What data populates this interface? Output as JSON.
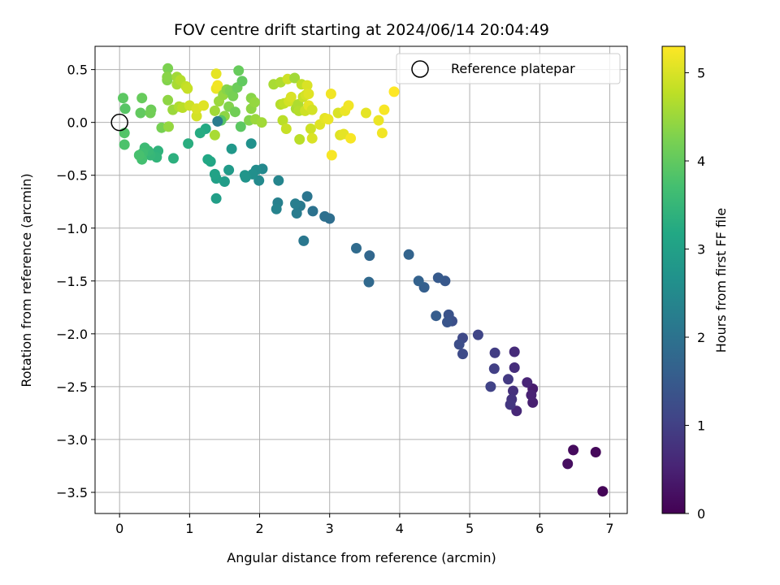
{
  "chart_data": {
    "type": "scatter",
    "title": "FOV centre drift starting at 2024/06/14 20:04:49",
    "xlabel": "Angular distance from reference (arcmin)",
    "ylabel": "Rotation from reference (arcmin)",
    "xlim": [
      -0.35,
      7.25
    ],
    "ylim": [
      -3.7,
      0.72
    ],
    "xticks": [
      0,
      1,
      2,
      3,
      4,
      5,
      6,
      7
    ],
    "xtick_labels": [
      "0",
      "1",
      "2",
      "3",
      "4",
      "5",
      "6",
      "7"
    ],
    "yticks": [
      0.5,
      0.0,
      -0.5,
      -1.0,
      -1.5,
      -2.0,
      -2.5,
      -3.0,
      -3.5
    ],
    "ytick_labels": [
      "0.5",
      "0.0",
      "−0.5",
      "−1.0",
      "−1.5",
      "−2.0",
      "−2.5",
      "−3.0",
      "−3.5"
    ],
    "grid": true,
    "legend": {
      "label": "Reference platepar",
      "position": "upper right",
      "marker": "open-circle"
    },
    "reference_point": {
      "x": 0,
      "y": 0
    },
    "colorbar": {
      "label": "Hours from first FF file",
      "colormap": "viridis",
      "range": [
        0,
        5.3
      ],
      "ticks": [
        0,
        1,
        2,
        3,
        4,
        5
      ],
      "tick_labels": [
        "0",
        "1",
        "2",
        "3",
        "4",
        "5"
      ]
    },
    "points": [
      [
        6.9,
        -3.49,
        0.05
      ],
      [
        6.8,
        -3.12,
        0.1
      ],
      [
        6.48,
        -3.1,
        0.15
      ],
      [
        6.4,
        -3.23,
        0.2
      ],
      [
        5.9,
        -2.52,
        0.4
      ],
      [
        5.9,
        -2.65,
        0.45
      ],
      [
        5.88,
        -2.58,
        0.5
      ],
      [
        5.82,
        -2.46,
        0.55
      ],
      [
        5.67,
        -2.73,
        0.6
      ],
      [
        5.64,
        -2.17,
        0.65
      ],
      [
        5.64,
        -2.32,
        0.7
      ],
      [
        5.62,
        -2.54,
        0.75
      ],
      [
        5.6,
        -2.62,
        0.8
      ],
      [
        5.58,
        -2.67,
        0.85
      ],
      [
        5.55,
        -2.43,
        0.9
      ],
      [
        5.36,
        -2.18,
        0.95
      ],
      [
        5.35,
        -2.33,
        1.0
      ],
      [
        5.3,
        -2.5,
        1.05
      ],
      [
        5.12,
        -2.01,
        1.1
      ],
      [
        4.9,
        -2.04,
        1.15
      ],
      [
        4.9,
        -2.19,
        1.2
      ],
      [
        4.85,
        -2.1,
        1.25
      ],
      [
        4.75,
        -1.88,
        1.3
      ],
      [
        4.7,
        -1.82,
        1.35
      ],
      [
        4.68,
        -1.89,
        1.4
      ],
      [
        4.65,
        -1.5,
        1.45
      ],
      [
        4.55,
        -1.47,
        1.5
      ],
      [
        4.52,
        -1.83,
        1.55
      ],
      [
        4.35,
        -1.56,
        1.6
      ],
      [
        4.27,
        -1.5,
        1.65
      ],
      [
        4.13,
        -1.25,
        1.7
      ],
      [
        3.57,
        -1.26,
        1.75
      ],
      [
        3.56,
        -1.51,
        1.8
      ],
      [
        3.38,
        -1.19,
        1.85
      ],
      [
        3.0,
        -0.91,
        1.9
      ],
      [
        2.93,
        -0.89,
        1.95
      ],
      [
        2.76,
        -0.84,
        2.0
      ],
      [
        2.68,
        -0.7,
        2.05
      ],
      [
        2.63,
        -1.12,
        2.1
      ],
      [
        2.58,
        -0.79,
        2.15
      ],
      [
        2.53,
        -0.86,
        2.2
      ],
      [
        2.51,
        -0.77,
        2.25
      ],
      [
        2.26,
        -0.76,
        2.3
      ],
      [
        2.24,
        -0.82,
        2.35
      ],
      [
        2.27,
        -0.55,
        2.4
      ],
      [
        2.04,
        -0.44,
        2.45
      ],
      [
        1.99,
        -0.55,
        2.5
      ],
      [
        1.95,
        -0.45,
        2.55
      ],
      [
        1.9,
        -0.49,
        2.6
      ],
      [
        1.88,
        -0.2,
        2.65
      ],
      [
        1.8,
        -0.52,
        2.7
      ],
      [
        1.79,
        -0.5,
        2.75
      ],
      [
        1.6,
        -0.25,
        2.8
      ],
      [
        1.56,
        -0.45,
        2.85
      ],
      [
        1.5,
        -0.56,
        2.9
      ],
      [
        1.38,
        -0.72,
        2.95
      ],
      [
        1.38,
        -0.53,
        3.0
      ],
      [
        1.36,
        -0.49,
        3.05
      ],
      [
        1.3,
        -0.37,
        3.1
      ],
      [
        1.26,
        -0.35,
        3.15
      ],
      [
        1.23,
        -0.06,
        3.2
      ],
      [
        1.15,
        -0.1,
        3.25
      ],
      [
        0.98,
        -0.2,
        3.3
      ],
      [
        0.77,
        -0.34,
        3.35
      ],
      [
        0.55,
        -0.27,
        3.4
      ],
      [
        0.53,
        -0.33,
        3.45
      ],
      [
        0.44,
        -0.31,
        3.5
      ],
      [
        0.41,
        -0.27,
        3.55
      ],
      [
        0.36,
        -0.24,
        3.6
      ],
      [
        0.33,
        -0.29,
        3.65
      ],
      [
        0.32,
        -0.35,
        3.7
      ],
      [
        0.28,
        -0.31,
        3.75
      ],
      [
        0.07,
        -0.21,
        3.8
      ],
      [
        0.07,
        -0.1,
        3.85
      ],
      [
        0.08,
        0.13,
        3.9
      ],
      [
        0.05,
        0.23,
        3.95
      ],
      [
        0.3,
        0.09,
        4.0
      ],
      [
        0.32,
        0.23,
        4.05
      ],
      [
        0.45,
        0.12,
        4.1
      ],
      [
        0.44,
        0.09,
        4.15
      ],
      [
        0.6,
        -0.05,
        4.2
      ],
      [
        0.69,
        0.51,
        4.25
      ],
      [
        0.68,
        0.4,
        4.3
      ],
      [
        0.68,
        0.43,
        4.35
      ],
      [
        0.69,
        0.21,
        4.4
      ],
      [
        0.7,
        -0.04,
        4.45
      ],
      [
        0.76,
        0.12,
        4.5
      ],
      [
        0.82,
        0.43,
        4.55
      ],
      [
        0.82,
        0.36,
        4.6
      ],
      [
        0.85,
        0.15,
        4.65
      ],
      [
        0.87,
        0.4,
        4.7
      ],
      [
        0.9,
        0.14,
        4.75
      ],
      [
        0.95,
        0.34,
        4.8
      ],
      [
        0.97,
        0.32,
        4.85
      ],
      [
        1.0,
        0.16,
        4.9
      ],
      [
        1.1,
        0.06,
        4.95
      ],
      [
        1.1,
        0.13,
        5.0
      ],
      [
        1.2,
        0.16,
        5.05
      ],
      [
        1.38,
        0.46,
        5.1
      ],
      [
        1.38,
        0.32,
        5.15
      ],
      [
        1.4,
        0.35,
        5.2
      ],
      [
        1.36,
        -0.12,
        4.6
      ],
      [
        1.36,
        0.11,
        4.55
      ],
      [
        1.42,
        0.2,
        4.5
      ],
      [
        1.48,
        0.26,
        4.45
      ],
      [
        1.5,
        0.06,
        4.4
      ],
      [
        1.53,
        0.31,
        4.35
      ],
      [
        1.56,
        0.15,
        4.3
      ],
      [
        1.58,
        0.3,
        4.25
      ],
      [
        1.62,
        0.25,
        4.2
      ],
      [
        1.65,
        0.1,
        4.15
      ],
      [
        1.68,
        0.33,
        4.1
      ],
      [
        1.7,
        0.49,
        4.05
      ],
      [
        1.75,
        0.39,
        4.0
      ],
      [
        1.73,
        -0.04,
        3.95
      ],
      [
        1.45,
        0.02,
        3.9
      ],
      [
        1.4,
        0.01,
        2.2
      ],
      [
        1.85,
        0.02,
        4.3
      ],
      [
        1.88,
        0.23,
        4.35
      ],
      [
        1.88,
        0.13,
        4.4
      ],
      [
        1.93,
        0.19,
        4.45
      ],
      [
        1.94,
        0.03,
        4.5
      ],
      [
        2.03,
        0.0,
        4.55
      ],
      [
        2.2,
        0.36,
        4.6
      ],
      [
        2.3,
        0.38,
        4.65
      ],
      [
        2.3,
        0.17,
        4.7
      ],
      [
        2.33,
        0.02,
        4.75
      ],
      [
        2.35,
        0.18,
        4.8
      ],
      [
        2.38,
        -0.06,
        4.85
      ],
      [
        2.4,
        0.41,
        4.9
      ],
      [
        2.42,
        0.2,
        4.95
      ],
      [
        2.45,
        0.24,
        5.0
      ],
      [
        2.5,
        0.42,
        4.55
      ],
      [
        2.52,
        0.13,
        4.6
      ],
      [
        2.55,
        0.17,
        4.65
      ],
      [
        2.56,
        0.11,
        4.7
      ],
      [
        2.57,
        -0.16,
        4.75
      ],
      [
        2.6,
        0.36,
        4.8
      ],
      [
        2.62,
        0.24,
        4.85
      ],
      [
        2.65,
        0.11,
        4.9
      ],
      [
        2.66,
        0.26,
        4.95
      ],
      [
        2.68,
        0.35,
        5.0
      ],
      [
        2.7,
        0.27,
        5.05
      ],
      [
        2.7,
        0.16,
        5.1
      ],
      [
        2.73,
        -0.06,
        4.9
      ],
      [
        2.75,
        0.12,
        4.95
      ],
      [
        2.75,
        -0.15,
        5.0
      ],
      [
        2.86,
        -0.02,
        5.05
      ],
      [
        2.93,
        0.04,
        5.1
      ],
      [
        2.98,
        0.03,
        5.15
      ],
      [
        3.02,
        0.27,
        5.2
      ],
      [
        3.03,
        -0.31,
        5.25
      ],
      [
        3.12,
        0.09,
        5.0
      ],
      [
        3.15,
        -0.12,
        5.05
      ],
      [
        3.2,
        -0.11,
        5.1
      ],
      [
        3.22,
        0.11,
        5.15
      ],
      [
        3.27,
        0.16,
        5.2
      ],
      [
        3.3,
        -0.15,
        5.25
      ],
      [
        3.52,
        0.09,
        5.1
      ],
      [
        3.7,
        0.02,
        5.15
      ],
      [
        3.75,
        -0.1,
        5.2
      ],
      [
        3.78,
        0.12,
        5.25
      ],
      [
        3.92,
        0.29,
        5.3
      ]
    ]
  }
}
